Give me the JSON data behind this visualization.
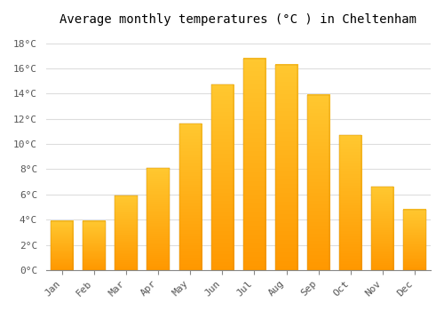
{
  "title": "Average monthly temperatures (°C ) in Cheltenham",
  "months": [
    "Jan",
    "Feb",
    "Mar",
    "Apr",
    "May",
    "Jun",
    "Jul",
    "Aug",
    "Sep",
    "Oct",
    "Nov",
    "Dec"
  ],
  "temperatures": [
    3.9,
    3.9,
    5.9,
    8.1,
    11.6,
    14.7,
    16.8,
    16.3,
    13.9,
    10.7,
    6.6,
    4.8
  ],
  "bar_color_top": "#FFC830",
  "bar_color_bottom": "#FF9800",
  "yticks": [
    0,
    2,
    4,
    6,
    8,
    10,
    12,
    14,
    16,
    18
  ],
  "ytick_labels": [
    "0°C",
    "2°C",
    "4°C",
    "6°C",
    "8°C",
    "10°C",
    "12°C",
    "14°C",
    "16°C",
    "18°C"
  ],
  "ylim": [
    0,
    19
  ],
  "background_color": "#FFFFFF",
  "plot_bg_color": "#FFFFFF",
  "grid_color": "#DDDDDD",
  "title_fontsize": 10,
  "tick_fontsize": 8,
  "font_family": "monospace"
}
